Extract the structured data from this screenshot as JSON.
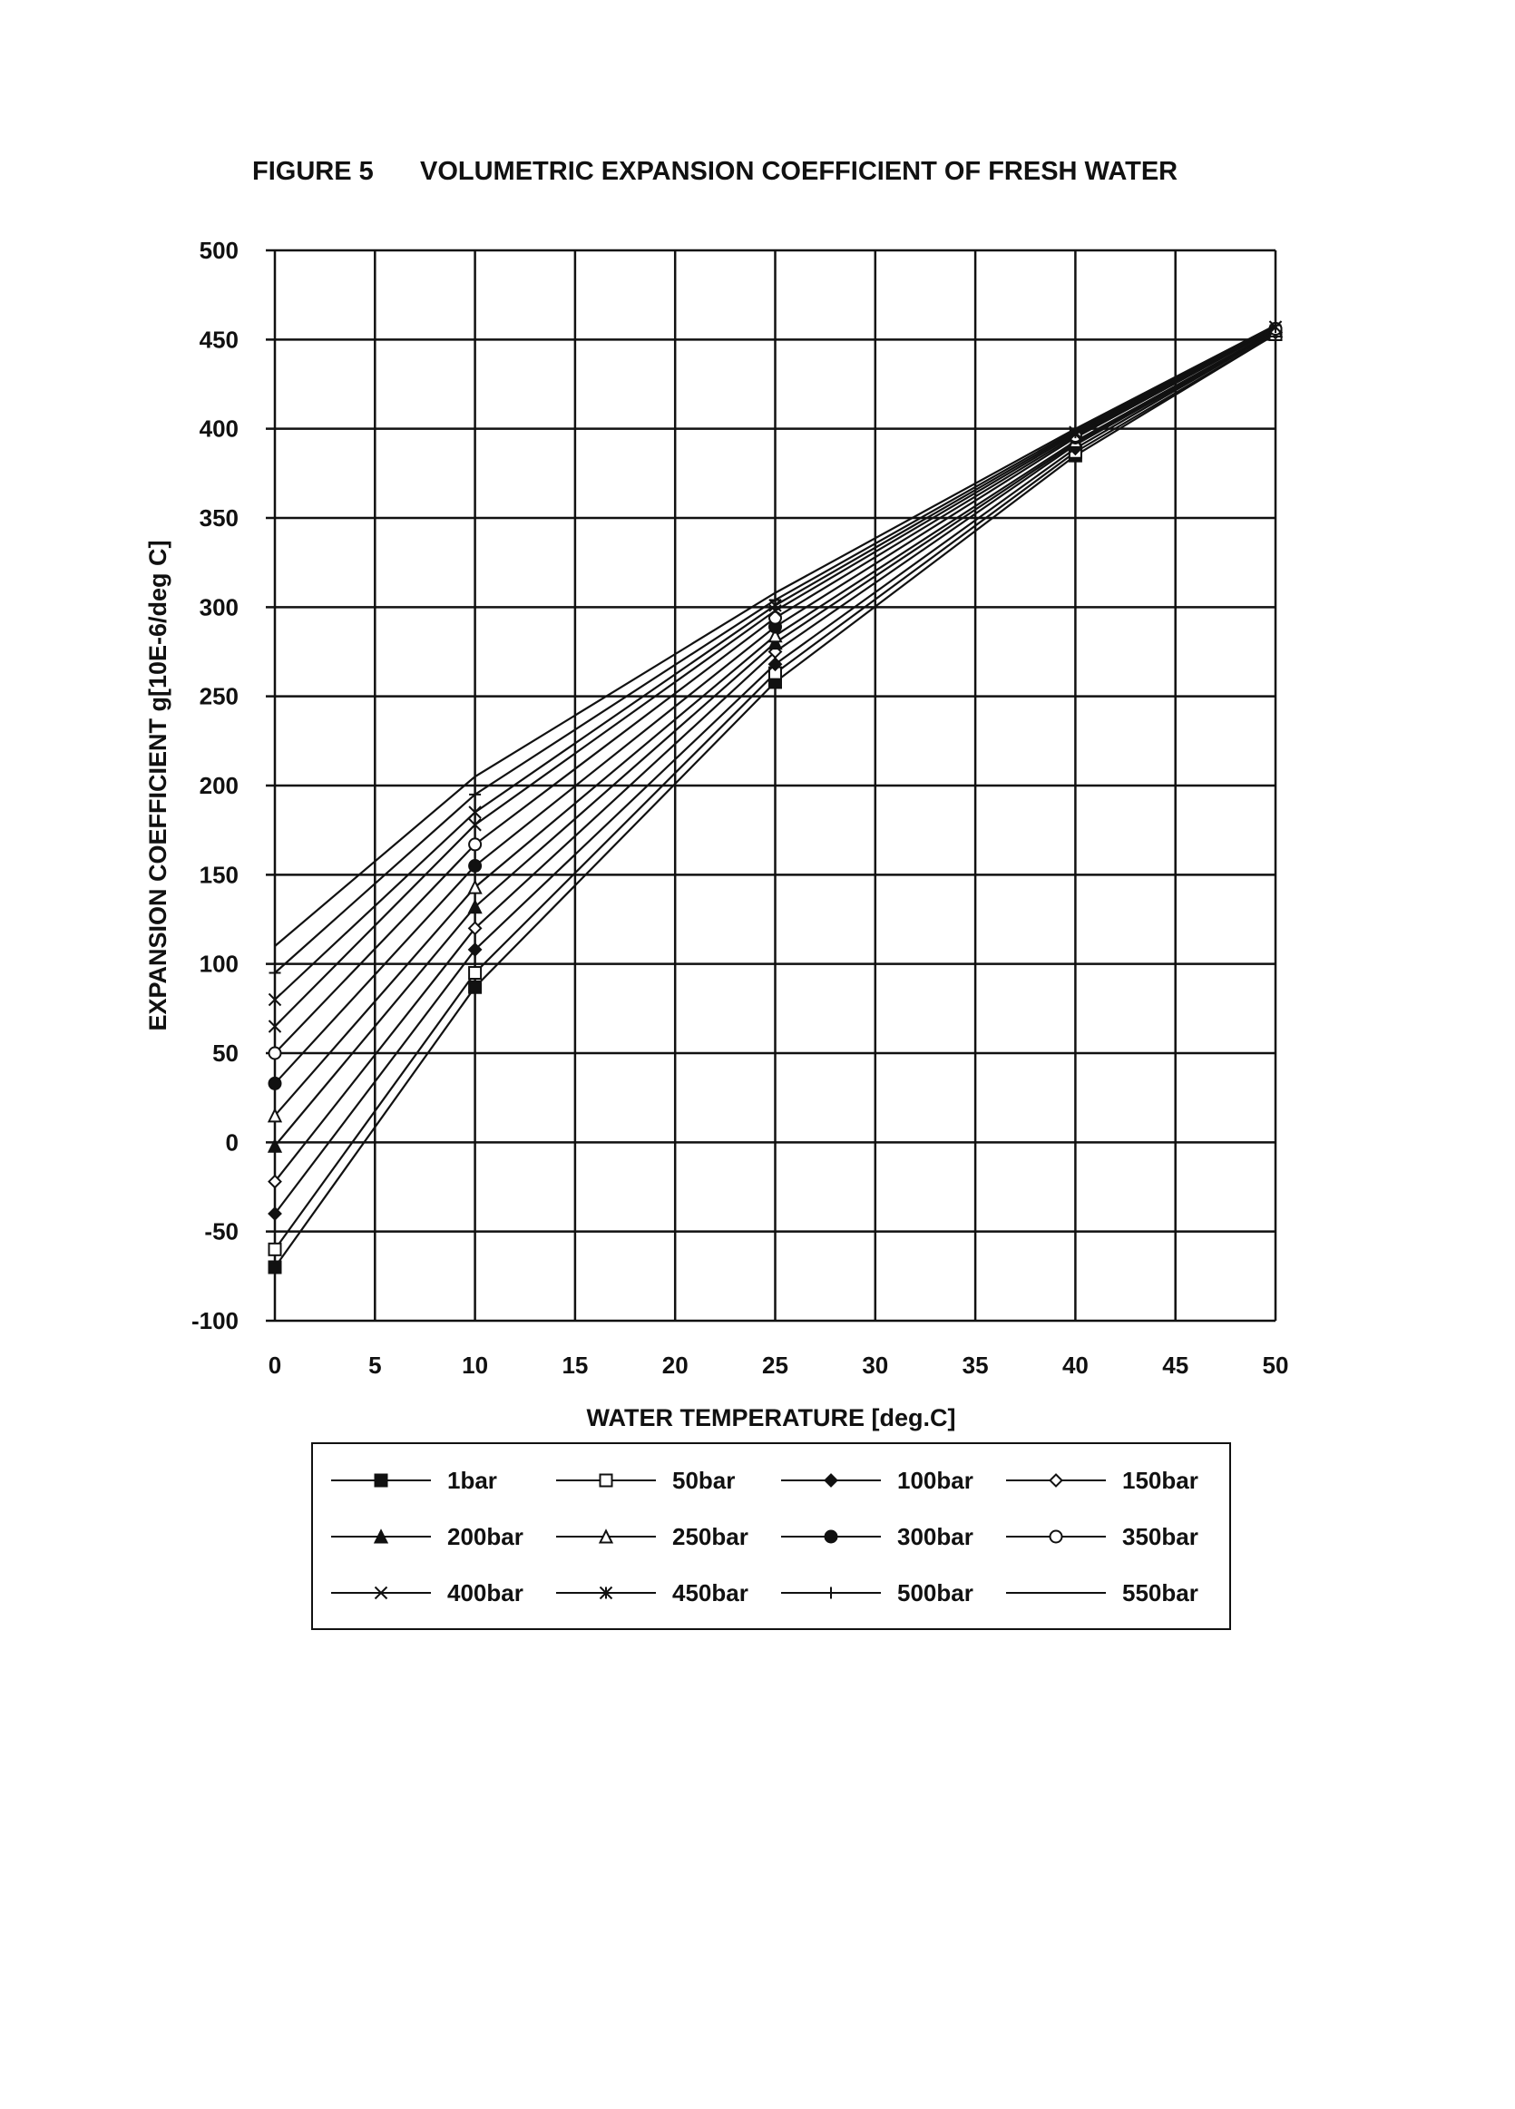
{
  "chart_data": {
    "type": "line",
    "title_prefix": "FIGURE 5",
    "title": "VOLUMETRIC EXPANSION COEFFICIENT OF FRESH WATER",
    "xlabel": "WATER TEMPERATURE [deg.C]",
    "ylabel": "EXPANSION COEFFICIENT g[10E-6/deg C]",
    "xlim": [
      0,
      50
    ],
    "ylim": [
      -100,
      500
    ],
    "xticks": [
      0,
      5,
      10,
      15,
      20,
      25,
      30,
      35,
      40,
      45,
      50
    ],
    "yticks": [
      -100,
      -50,
      0,
      50,
      100,
      150,
      200,
      250,
      300,
      350,
      400,
      450,
      500
    ],
    "grid": true,
    "legend_position": "bottom",
    "x": [
      0,
      10,
      25,
      40,
      50
    ],
    "series": [
      {
        "name": "1bar",
        "marker": "filled-square",
        "values": [
          -70,
          87,
          258,
          385,
          453
        ]
      },
      {
        "name": "50bar",
        "marker": "open-square",
        "values": [
          -60,
          95,
          263,
          387,
          453
        ]
      },
      {
        "name": "100bar",
        "marker": "filled-diamond",
        "values": [
          -40,
          108,
          268,
          389,
          454
        ]
      },
      {
        "name": "150bar",
        "marker": "open-diamond",
        "values": [
          -22,
          120,
          275,
          391,
          454
        ]
      },
      {
        "name": "200bar",
        "marker": "filled-triangle",
        "values": [
          -2,
          132,
          280,
          392,
          455
        ]
      },
      {
        "name": "250bar",
        "marker": "open-triangle",
        "values": [
          15,
          143,
          284,
          393,
          455
        ]
      },
      {
        "name": "300bar",
        "marker": "filled-circle",
        "values": [
          33,
          155,
          289,
          395,
          456
        ]
      },
      {
        "name": "350bar",
        "marker": "open-circle",
        "values": [
          50,
          167,
          294,
          396,
          456
        ]
      },
      {
        "name": "400bar",
        "marker": "x",
        "values": [
          65,
          178,
          298,
          397,
          457
        ]
      },
      {
        "name": "450bar",
        "marker": "star",
        "values": [
          80,
          185,
          301,
          398,
          457
        ]
      },
      {
        "name": "500bar",
        "marker": "plus",
        "values": [
          95,
          195,
          304,
          399,
          458
        ]
      },
      {
        "name": "550bar",
        "marker": "none",
        "values": [
          110,
          205,
          308,
          400,
          458
        ]
      }
    ]
  }
}
